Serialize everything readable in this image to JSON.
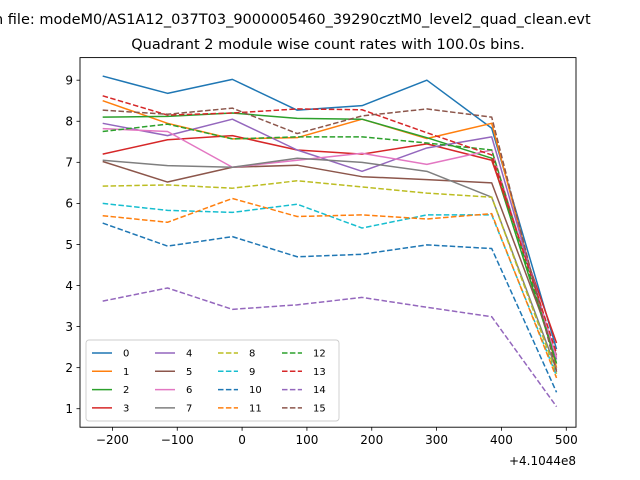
{
  "figure": {
    "suptitle": "n file: modeM0/AS1A12_037T03_9000005460_39290cztM0_level2_quad_clean.evt"
  },
  "chart_data": {
    "type": "line",
    "title": "Quadrant 2 module wise count rates with 100.0s bins.",
    "xlabel": "",
    "ylabel": "",
    "x_offset_label": "+4.1044e8",
    "xlim": [
      -250,
      515
    ],
    "ylim": [
      0.55,
      9.55
    ],
    "xticks": [
      -200,
      -100,
      0,
      100,
      200,
      300,
      400,
      500
    ],
    "xtick_labels": [
      "−200",
      "−100",
      "0",
      "100",
      "200",
      "300",
      "400",
      "500"
    ],
    "yticks": [
      1,
      2,
      3,
      4,
      5,
      6,
      7,
      8,
      9
    ],
    "ytick_labels": [
      "1",
      "2",
      "3",
      "4",
      "5",
      "6",
      "7",
      "8",
      "9"
    ],
    "grid": false,
    "legend_position": "lower-left",
    "legend_columns": 4,
    "x": [
      -215,
      -115,
      -15,
      85,
      185,
      285,
      385,
      485
    ],
    "series": [
      {
        "name": "0",
        "color": "#1f77b4",
        "dash": "solid",
        "values": [
          9.1,
          8.68,
          9.02,
          8.27,
          8.38,
          9.0,
          7.83,
          2.45
        ]
      },
      {
        "name": "1",
        "color": "#ff7f0e",
        "dash": "solid",
        "values": [
          8.5,
          7.95,
          7.57,
          7.6,
          8.05,
          7.58,
          7.95,
          2.0
        ]
      },
      {
        "name": "2",
        "color": "#2ca02c",
        "dash": "solid",
        "values": [
          8.1,
          8.12,
          8.2,
          8.07,
          8.05,
          7.6,
          7.1,
          2.1
        ]
      },
      {
        "name": "3",
        "color": "#d62728",
        "dash": "solid",
        "values": [
          7.2,
          7.55,
          7.65,
          7.3,
          7.2,
          7.45,
          7.05,
          2.6
        ]
      },
      {
        "name": "4",
        "color": "#9467bd",
        "dash": "solid",
        "values": [
          7.95,
          7.65,
          8.05,
          7.3,
          6.78,
          7.35,
          7.62,
          2.2
        ]
      },
      {
        "name": "5",
        "color": "#8c564b",
        "dash": "solid",
        "values": [
          7.02,
          6.52,
          6.88,
          6.93,
          6.65,
          6.58,
          6.5,
          2.3
        ]
      },
      {
        "name": "6",
        "color": "#e377c2",
        "dash": "solid",
        "values": [
          7.82,
          7.75,
          6.88,
          7.05,
          7.22,
          6.95,
          7.3,
          2.25
        ]
      },
      {
        "name": "7",
        "color": "#7f7f7f",
        "dash": "solid",
        "values": [
          7.05,
          6.92,
          6.88,
          7.1,
          7.0,
          6.78,
          6.15,
          1.95
        ]
      },
      {
        "name": "8",
        "color": "#bcbd22",
        "dash": "dashed",
        "values": [
          6.42,
          6.45,
          6.37,
          6.55,
          6.4,
          6.25,
          6.15,
          1.85
        ]
      },
      {
        "name": "9",
        "color": "#17becf",
        "dash": "dashed",
        "values": [
          6.0,
          5.83,
          5.78,
          5.98,
          5.4,
          5.72,
          5.72,
          1.8
        ]
      },
      {
        "name": "10",
        "color": "#1f77b4",
        "dash": "dashed",
        "values": [
          5.52,
          4.96,
          5.19,
          4.7,
          4.76,
          4.99,
          4.9,
          1.4
        ]
      },
      {
        "name": "11",
        "color": "#ff7f0e",
        "dash": "dashed",
        "values": [
          5.7,
          5.54,
          6.12,
          5.68,
          5.72,
          5.62,
          5.75,
          1.75
        ]
      },
      {
        "name": "12",
        "color": "#2ca02c",
        "dash": "dashed",
        "values": [
          7.75,
          7.93,
          7.57,
          7.62,
          7.62,
          7.47,
          7.3,
          2.1
        ]
      },
      {
        "name": "13",
        "color": "#d62728",
        "dash": "dashed",
        "values": [
          8.62,
          8.15,
          8.2,
          8.3,
          8.28,
          7.72,
          7.18,
          2.35
        ]
      },
      {
        "name": "14",
        "color": "#9467bd",
        "dash": "dashed",
        "values": [
          3.62,
          3.94,
          3.42,
          3.53,
          3.71,
          3.47,
          3.24,
          1.05
        ]
      },
      {
        "name": "15",
        "color": "#8c564b",
        "dash": "dashed",
        "values": [
          8.27,
          8.17,
          8.32,
          7.7,
          8.13,
          8.3,
          8.1,
          1.9
        ]
      }
    ]
  }
}
